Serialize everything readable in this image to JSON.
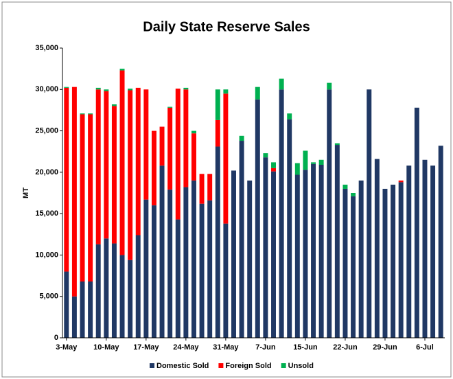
{
  "chart_data": {
    "type": "stacked_bar",
    "title": "Daily State Reserve Sales",
    "y_label": "MT",
    "categories": [
      "3-May",
      null,
      null,
      null,
      null,
      "10-May",
      null,
      null,
      null,
      null,
      "17-May",
      null,
      null,
      null,
      null,
      "24-May",
      null,
      null,
      null,
      null,
      "31-May",
      null,
      null,
      null,
      null,
      "7-Jun",
      null,
      null,
      null,
      null,
      "15-Jun",
      null,
      null,
      null,
      null,
      "22-Jun",
      null,
      null,
      null,
      null,
      "29-Jun",
      null,
      null,
      null,
      null,
      "6-Jul",
      null,
      null
    ],
    "series": [
      {
        "name": "Domestic Sold",
        "color": "#203864",
        "values": [
          8000,
          5000,
          6800,
          6800,
          11300,
          12000,
          11400,
          10000,
          9400,
          12400,
          16700,
          16000,
          20800,
          17900,
          14300,
          18200,
          19000,
          16200,
          16600,
          23100,
          13800,
          20200,
          23800,
          19000,
          28800,
          21800,
          20100,
          30000,
          26400,
          19700,
          20300,
          21000,
          20900,
          30000,
          23300,
          18000,
          17100,
          19000,
          30000,
          21600,
          18000,
          18500,
          18800,
          20800,
          27800,
          21500,
          20800,
          23200
        ]
      },
      {
        "name": "Foreign Sold",
        "color": "#ff0000",
        "values": [
          22200,
          25300,
          20200,
          20200,
          18700,
          17800,
          16600,
          22300,
          20500,
          17800,
          13300,
          9000,
          4700,
          9900,
          15800,
          11800,
          5700,
          3600,
          3200,
          3200,
          15700,
          0,
          0,
          0,
          0,
          0,
          400,
          0,
          0,
          0,
          0,
          0,
          0,
          0,
          0,
          0,
          0,
          0,
          0,
          0,
          0,
          0,
          200,
          0,
          0,
          0,
          0,
          0
        ]
      },
      {
        "name": "Unsold",
        "color": "#00b050",
        "values": [
          100,
          0,
          100,
          100,
          200,
          200,
          200,
          200,
          200,
          0,
          0,
          0,
          0,
          100,
          0,
          200,
          300,
          0,
          0,
          3700,
          500,
          0,
          600,
          0,
          1500,
          500,
          700,
          1300,
          700,
          1400,
          2300,
          200,
          600,
          800,
          200,
          500,
          400,
          0,
          0,
          0,
          0,
          0,
          0,
          0,
          0,
          0,
          0,
          0
        ]
      }
    ],
    "ylim": [
      0,
      35000
    ],
    "yticks": [
      0,
      {
        "value": 5000,
        "label": "5,000"
      },
      {
        "value": 10000,
        "label": "10,000"
      },
      {
        "value": 15000,
        "label": "15,000"
      },
      {
        "value": 20000,
        "label": "20,000"
      },
      {
        "value": 25000,
        "label": "25,000"
      },
      {
        "value": 30000,
        "label": "30,000"
      },
      {
        "value": 35000,
        "label": "35,000"
      }
    ],
    "legend": "bottom"
  }
}
